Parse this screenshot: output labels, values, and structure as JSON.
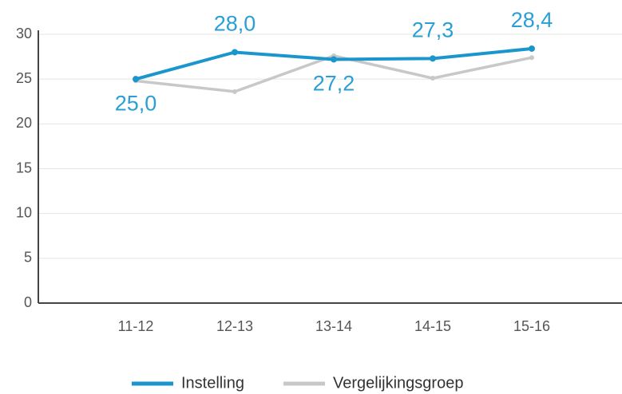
{
  "chart_data": {
    "type": "line",
    "categories": [
      "11-12",
      "12-13",
      "13-14",
      "14-15",
      "15-16"
    ],
    "series": [
      {
        "name": "Instelling",
        "color": "#1a96cc",
        "values": [
          25.0,
          28.0,
          27.2,
          27.3,
          28.4
        ],
        "value_labels": [
          "25,0",
          "28,0",
          "27,2",
          "27,3",
          "28,4"
        ]
      },
      {
        "name": "Vergelijkingsgroep",
        "color": "#c8c8c8",
        "values": [
          24.8,
          23.6,
          27.6,
          25.1,
          27.4
        ]
      }
    ],
    "ylim": [
      0,
      30
    ],
    "yticks": [
      0,
      5,
      10,
      15,
      20,
      25,
      30
    ],
    "grid": true,
    "legend": "bottom"
  }
}
